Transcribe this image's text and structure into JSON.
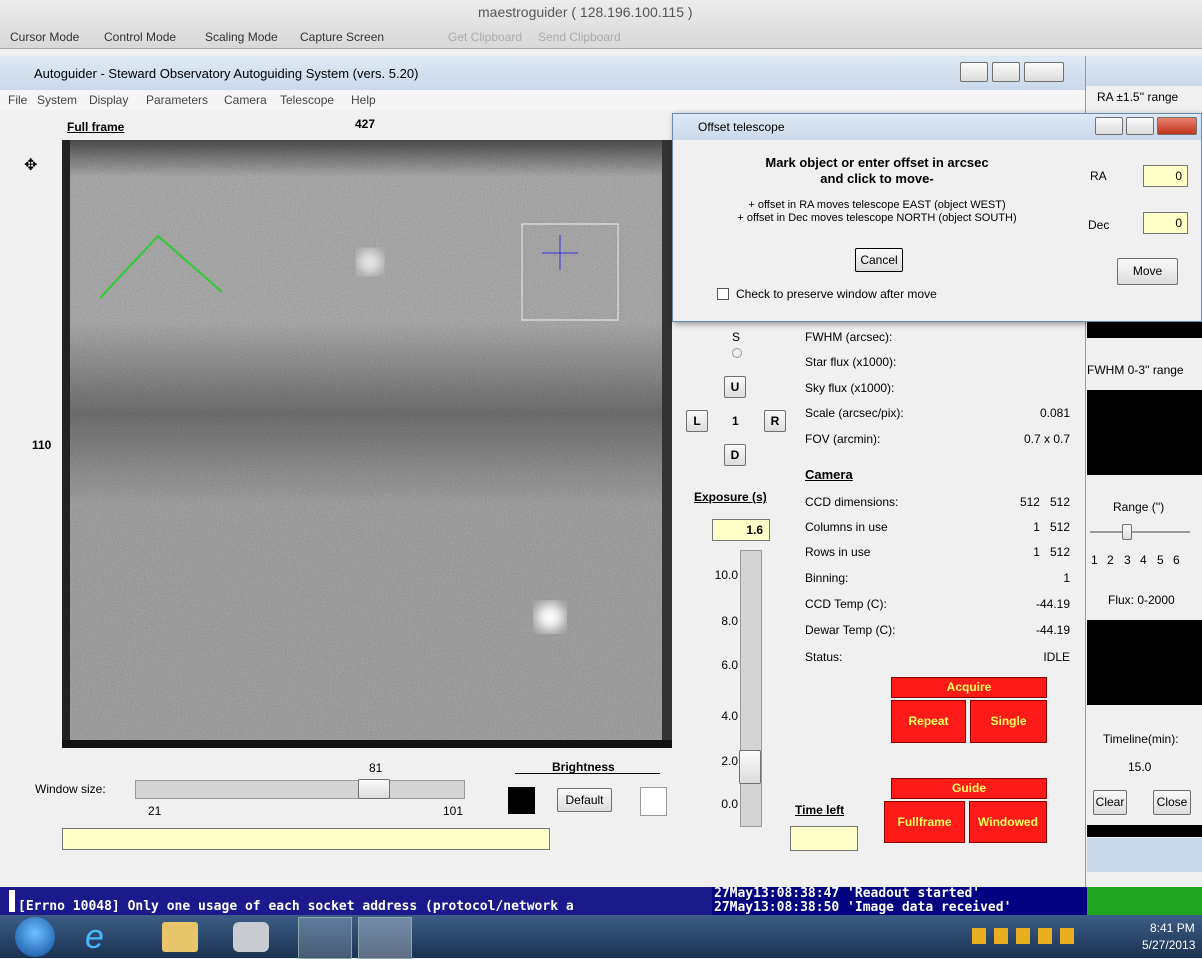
{
  "mac_window": {
    "title": "maestroguider ( 128.196.100.115 )",
    "toolbar": [
      "Cursor Mode",
      "Control Mode",
      "Scaling Mode",
      "Capture Screen",
      "Get Clipboard",
      "Send Clipboard"
    ]
  },
  "main_window": {
    "title": "Autoguider - Steward Observatory Autoguiding System (vers. 5.20)",
    "menu": [
      "File",
      "System",
      "Display",
      "Parameters",
      "Camera",
      "Telescope",
      "Help"
    ],
    "image_label": "Full frame",
    "column": "427",
    "row": "110",
    "window_size": {
      "label": "Window size:",
      "value": "81",
      "min": "21",
      "max": "101"
    },
    "brightness": {
      "label": "Brightness",
      "default_button": "Default"
    },
    "compass": {
      "south": "S",
      "up": "U",
      "left": "L",
      "step": "1",
      "right": "R",
      "down": "D"
    },
    "exposure": {
      "label": "Exposure (s)",
      "value": "1.6",
      "scale": [
        "10.0",
        "8.0",
        "6.0",
        "4.0",
        "2.0",
        "0.0"
      ]
    },
    "time_left": "Time left",
    "stats": [
      {
        "label": "FWHM (arcsec):"
      },
      {
        "label": "Star flux (x1000):"
      },
      {
        "label": "Sky flux (x1000):"
      },
      {
        "label": "Scale (arcsec/pix):",
        "value": "0.081"
      },
      {
        "label": "FOV (arcmin):",
        "value": "0.7 x 0.7"
      }
    ],
    "camera": {
      "heading": "Camera",
      "rows": [
        {
          "label": "CCD dimensions:",
          "value": "512   512"
        },
        {
          "label": "Columns in use",
          "value": "1   512"
        },
        {
          "label": "Rows in use",
          "value": "1   512"
        },
        {
          "label": "Binning:",
          "value": "1"
        },
        {
          "label": "CCD Temp (C):",
          "value": "-44.19"
        },
        {
          "label": "Dewar Temp (C):",
          "value": "-44.19"
        },
        {
          "label": "Status:",
          "value": "IDLE"
        }
      ]
    },
    "acquire": {
      "label": "Acquire",
      "repeat": "Repeat",
      "single": "Single"
    },
    "guide": {
      "label": "Guide",
      "fullframe": "Fullframe",
      "windowed": "Windowed"
    }
  },
  "side_window": {
    "ra_range": "RA ±1.5'' range",
    "fwhm_range": "FWHM 0-3'' range",
    "range_label": "Range ('')",
    "range_ticks": [
      "1",
      "2",
      "3",
      "4",
      "5",
      "6"
    ],
    "flux": "Flux: 0-2000",
    "timeline_label": "Timeline(min):",
    "timeline_value": "15.0",
    "clear": "Clear",
    "close": "Close"
  },
  "offset_dialog": {
    "title": "Offset telescope",
    "heading": [
      "Mark object or enter offset in arcsec",
      "and click to move-"
    ],
    "notes": [
      "+ offset in RA moves telescope EAST (object WEST)",
      "+ offset in Dec moves telescope NORTH (object SOUTH)"
    ],
    "cancel": "Cancel",
    "preserve": "Check to preserve window after move",
    "ra_label": "RA",
    "ra_value": "0",
    "dec_label": "Dec",
    "dec_value": "0",
    "move": "Move"
  },
  "console": {
    "error": "[Errno 10048] Only one usage of each socket address (protocol/network a",
    "log": [
      "27May13:08:38:47 'Readout started'",
      "27May13:08:38:50 'Image data received'"
    ]
  },
  "taskbar": {
    "time": "8:41 PM",
    "date": "5/27/2013"
  }
}
